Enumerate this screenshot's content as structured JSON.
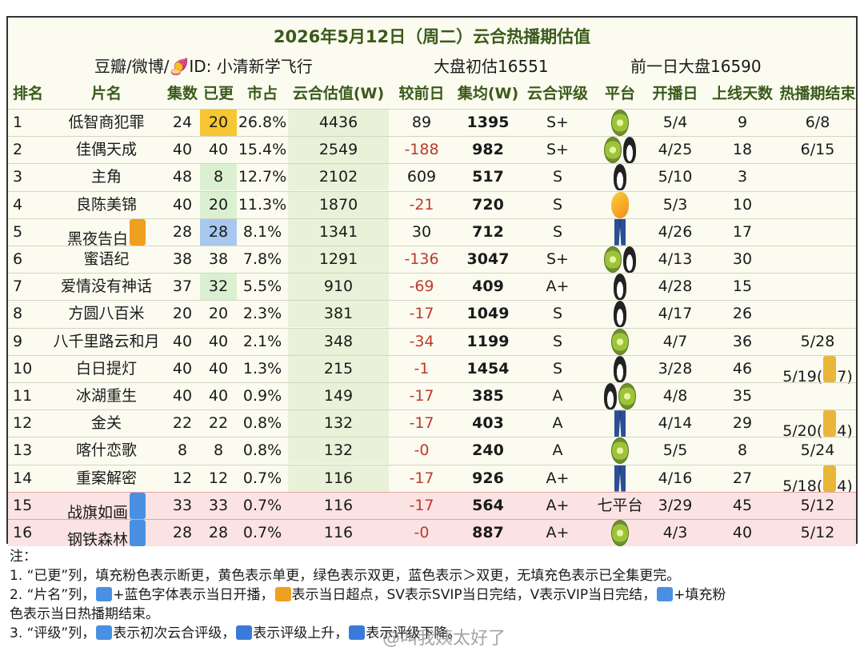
{
  "header": {
    "title": "2026年5月12日（周二）云合热播期估值",
    "source": "豆瓣/微博/🍠ID: 小清新学飞行",
    "total_initial": "大盘初估16551",
    "prev_day_total": "前一日大盘16590"
  },
  "columns": [
    "排名",
    "片名",
    "集数",
    "已更",
    "市占",
    "云合估值(W)",
    "较前日",
    "集均(W)",
    "云合评级",
    "平台",
    "开播日",
    "上线天数",
    "热播期结束"
  ],
  "rows": [
    {
      "rank": "1",
      "name": "低智商犯罪",
      "eps": "24",
      "aired": "20",
      "aired_fill": "yellow",
      "share": "26.8%",
      "est": "4436",
      "delta": "89",
      "avg": "1395",
      "rating": "S+",
      "platforms": [
        "kiwi"
      ],
      "start": "5/4",
      "days": "9",
      "end": "6/8",
      "lock": ""
    },
    {
      "rank": "2",
      "name": "佳偶天成",
      "eps": "40",
      "aired": "40",
      "aired_fill": "",
      "share": "15.4%",
      "est": "2549",
      "delta": "-188",
      "avg": "982",
      "rating": "S+",
      "platforms": [
        "kiwi",
        "penguin"
      ],
      "start": "4/25",
      "days": "18",
      "end": "6/15",
      "lock": ""
    },
    {
      "rank": "3",
      "name": "主角",
      "eps": "48",
      "aired": "8",
      "aired_fill": "green",
      "share": "12.7%",
      "est": "2102",
      "delta": "609",
      "avg": "517",
      "rating": "S",
      "platforms": [
        "penguin"
      ],
      "start": "5/10",
      "days": "3",
      "end": "",
      "lock": ""
    },
    {
      "rank": "4",
      "name": "良陈美锦",
      "eps": "40",
      "aired": "20",
      "aired_fill": "green",
      "share": "11.3%",
      "est": "1870",
      "delta": "-21",
      "avg": "720",
      "rating": "S",
      "platforms": [
        "mango"
      ],
      "start": "5/3",
      "days": "10",
      "end": "",
      "lock": ""
    },
    {
      "rank": "5",
      "name": "黑夜告白",
      "tag": "ff",
      "eps": "28",
      "aired": "28",
      "aired_fill": "blue",
      "share": "8.1%",
      "est": "1341",
      "delta": "30",
      "avg": "712",
      "rating": "S",
      "platforms": [
        "jeans"
      ],
      "start": "4/26",
      "days": "17",
      "end": "",
      "lock": ""
    },
    {
      "rank": "6",
      "name": "蜜语纪",
      "eps": "38",
      "aired": "38",
      "aired_fill": "",
      "share": "7.8%",
      "est": "1291",
      "delta": "-136",
      "avg": "3047",
      "rating": "S+",
      "platforms": [
        "kiwi",
        "penguin"
      ],
      "start": "4/13",
      "days": "30",
      "end": "",
      "lock": ""
    },
    {
      "rank": "7",
      "name": "爱情没有神话",
      "eps": "37",
      "aired": "32",
      "aired_fill": "green",
      "share": "5.5%",
      "est": "910",
      "delta": "-69",
      "avg": "409",
      "rating": "A+",
      "platforms": [
        "penguin"
      ],
      "start": "4/28",
      "days": "15",
      "end": "",
      "lock": ""
    },
    {
      "rank": "8",
      "name": "方圆八百米",
      "eps": "20",
      "aired": "20",
      "aired_fill": "",
      "share": "2.3%",
      "est": "381",
      "delta": "-17",
      "avg": "1049",
      "rating": "S",
      "platforms": [
        "penguin"
      ],
      "start": "4/17",
      "days": "26",
      "end": "",
      "lock": ""
    },
    {
      "rank": "9",
      "name": "八千里路云和月",
      "eps": "40",
      "aired": "40",
      "aired_fill": "",
      "share": "2.1%",
      "est": "348",
      "delta": "-34",
      "avg": "1199",
      "rating": "S",
      "platforms": [
        "kiwi"
      ],
      "start": "4/7",
      "days": "36",
      "end": "5/28",
      "lock": ""
    },
    {
      "rank": "10",
      "name": "白日提灯",
      "eps": "40",
      "aired": "40",
      "aired_fill": "",
      "share": "1.3%",
      "est": "215",
      "delta": "-1",
      "avg": "1454",
      "rating": "S",
      "platforms": [
        "penguin"
      ],
      "start": "3/28",
      "days": "46",
      "end": "5/19(",
      "lock": "7)"
    },
    {
      "rank": "11",
      "name": "冰湖重生",
      "eps": "40",
      "aired": "40",
      "aired_fill": "",
      "share": "0.9%",
      "est": "149",
      "delta": "-17",
      "avg": "385",
      "rating": "A",
      "platforms": [
        "penguin",
        "kiwi"
      ],
      "start": "4/8",
      "days": "35",
      "end": "",
      "lock": ""
    },
    {
      "rank": "12",
      "name": "金关",
      "eps": "22",
      "aired": "22",
      "aired_fill": "",
      "share": "0.8%",
      "est": "132",
      "delta": "-17",
      "avg": "403",
      "rating": "A",
      "platforms": [
        "jeans"
      ],
      "start": "4/14",
      "days": "29",
      "end": "5/20(",
      "lock": "4)"
    },
    {
      "rank": "13",
      "name": "喀什恋歌",
      "eps": "8",
      "aired": "8",
      "aired_fill": "",
      "share": "0.8%",
      "est": "132",
      "delta": "-0",
      "avg": "240",
      "rating": "A",
      "platforms": [
        "kiwi"
      ],
      "start": "5/5",
      "days": "8",
      "end": "5/24",
      "lock": ""
    },
    {
      "rank": "14",
      "name": "重案解密",
      "eps": "12",
      "aired": "12",
      "aired_fill": "",
      "share": "0.7%",
      "est": "116",
      "delta": "-17",
      "avg": "926",
      "rating": "A+",
      "platforms": [
        "jeans"
      ],
      "start": "4/16",
      "days": "27",
      "end": "5/18(",
      "lock": "4)"
    },
    {
      "rank": "15",
      "name": "战旗如画",
      "tag": "end",
      "eps": "33",
      "aired": "33",
      "aired_fill": "",
      "share": "0.7%",
      "est": "116",
      "delta": "-17",
      "avg": "564",
      "rating": "A+",
      "platform_text": "七平台",
      "platforms": [],
      "start": "3/29",
      "days": "45",
      "end": "5/12",
      "lock": "",
      "ended": true
    },
    {
      "rank": "16",
      "name": "钢铁森林",
      "tag": "end",
      "eps": "28",
      "aired": "28",
      "aired_fill": "",
      "share": "0.7%",
      "est": "116",
      "delta": "-0",
      "avg": "887",
      "rating": "A+",
      "platforms": [
        "kiwi"
      ],
      "start": "4/3",
      "days": "40",
      "end": "5/12",
      "lock": "",
      "ended": true
    }
  ],
  "notes": {
    "heading": "注：",
    "n1": "1. “已更”列，填充粉色表示断更，黄色表示单更，绿色表示双更，蓝色表示＞双更，无填充色表示已全集更完。",
    "n2a": "2. “片名”列，",
    "n2b": "+蓝色字体表示当日开播，",
    "n2c": "表示当日超点，SV表示SVIP当日完结，V表示VIP当日完结，",
    "n2d": "+填充粉",
    "n2e": "色表示当日热播期结束。",
    "n3a": "3. “评级”列，",
    "n3b": "表示初次云合评级，",
    "n3c": "表示评级上升，",
    "n3d": "表示评级下降。"
  },
  "watermark": "@叫我姨太好了"
}
